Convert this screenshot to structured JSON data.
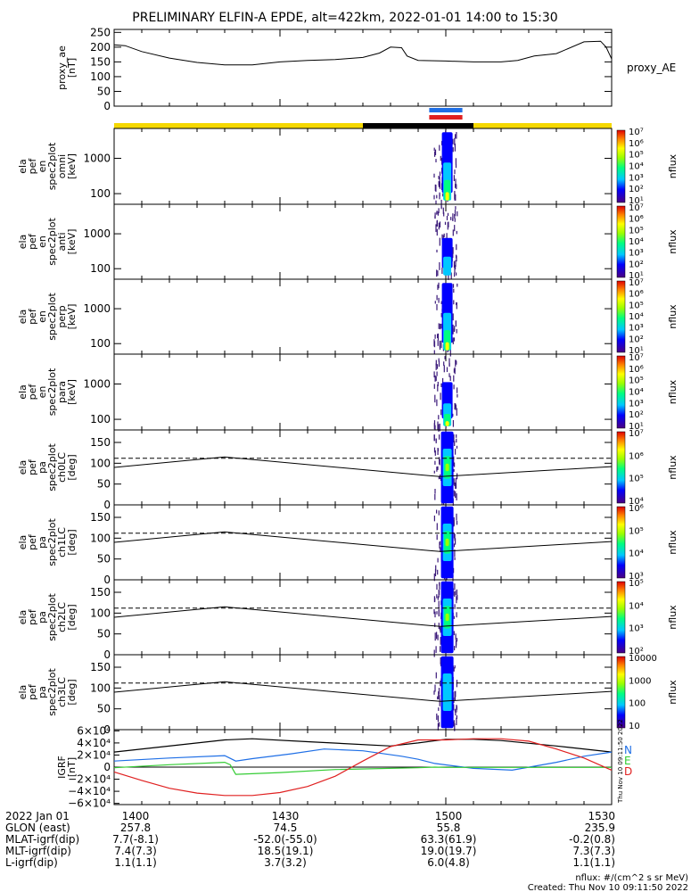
{
  "title": "PRELIMINARY ELFIN-A EPDE, alt=422km, 2022-01-01 14:00 to 15:30",
  "colors": {
    "yellow": "#f5d800",
    "black": "#000000",
    "blue": "#1f6fe6",
    "red": "#e02020",
    "green": "#33cc33"
  },
  "time_range_min": [
    0,
    90
  ],
  "chart_data": [
    {
      "type": "line",
      "id": "proxy_ae",
      "ylabel_lines": [
        "proxy_ae",
        "[nT]"
      ],
      "right_label": "proxy_AE",
      "ylim": [
        0,
        260
      ],
      "yticks": [
        0,
        50,
        100,
        150,
        200,
        250
      ],
      "series": [
        {
          "x": [
            0,
            2,
            5,
            10,
            15,
            20,
            25,
            30,
            35,
            40,
            45,
            48,
            50,
            52,
            53,
            55,
            60,
            65,
            70,
            73,
            76,
            80,
            85,
            88,
            89,
            90
          ],
          "y": [
            208,
            205,
            185,
            163,
            148,
            140,
            140,
            150,
            155,
            158,
            165,
            180,
            200,
            198,
            170,
            155,
            153,
            150,
            150,
            155,
            170,
            178,
            218,
            220,
            200,
            160
          ]
        }
      ]
    },
    {
      "type": "bar",
      "id": "status_bars",
      "segments": [
        {
          "color": "yellow",
          "x0": 0,
          "x1": 45
        },
        {
          "color": "black",
          "x0": 45,
          "x1": 65
        },
        {
          "color": "yellow",
          "x0": 65,
          "x1": 90
        }
      ],
      "markers": [
        {
          "color": "blue",
          "x0": 57,
          "x1": 63
        },
        {
          "color": "red",
          "x0": 57,
          "x1": 63
        }
      ]
    },
    {
      "type": "heatmap",
      "id": "en_omni",
      "ylabel_lines": [
        "ela",
        "pef",
        "en",
        "spec2plot",
        "omni",
        "[keV]"
      ],
      "yscale": "log",
      "ylim": [
        50,
        7000
      ],
      "yticks": [
        100,
        1000
      ],
      "colorbar": {
        "label": "nflux",
        "ticks": [
          "10¹",
          "10²",
          "10³",
          "10⁴",
          "10⁵",
          "10⁶",
          "10⁷"
        ]
      }
    },
    {
      "type": "heatmap",
      "id": "en_anti",
      "ylabel_lines": [
        "ela",
        "pef",
        "en",
        "spec2plot",
        "anti",
        "[keV]"
      ],
      "yscale": "log",
      "ylim": [
        50,
        7000
      ],
      "yticks": [
        100,
        1000
      ],
      "colorbar": {
        "label": "nflux",
        "ticks": [
          "10¹",
          "10²",
          "10³",
          "10⁴",
          "10⁵",
          "10⁶",
          "10⁷"
        ]
      }
    },
    {
      "type": "heatmap",
      "id": "en_perp",
      "ylabel_lines": [
        "ela",
        "pef",
        "en",
        "spec2plot",
        "perp",
        "[keV]"
      ],
      "yscale": "log",
      "ylim": [
        50,
        7000
      ],
      "yticks": [
        100,
        1000
      ],
      "colorbar": {
        "label": "nflux",
        "ticks": [
          "10¹",
          "10²",
          "10³",
          "10⁴",
          "10⁵",
          "10⁶",
          "10⁷"
        ]
      }
    },
    {
      "type": "heatmap",
      "id": "en_para",
      "ylabel_lines": [
        "ela",
        "pef",
        "en",
        "spec2plot",
        "para",
        "[keV]"
      ],
      "yscale": "log",
      "ylim": [
        50,
        7000
      ],
      "yticks": [
        100,
        1000
      ],
      "colorbar": {
        "label": "nflux",
        "ticks": [
          "10¹",
          "10²",
          "10³",
          "10⁴",
          "10⁵",
          "10⁶",
          "10⁷"
        ]
      }
    },
    {
      "type": "heatmap",
      "id": "pa_ch0",
      "ylabel_lines": [
        "ela",
        "pef",
        "pa",
        "spec2plot",
        "ch0LC",
        "[deg]"
      ],
      "ylim": [
        0,
        180
      ],
      "yticks": [
        0,
        50,
        100,
        150
      ],
      "colorbar": {
        "label": "nflux",
        "ticks": [
          "10⁴",
          "10⁵",
          "10⁶",
          "10⁷"
        ]
      }
    },
    {
      "type": "heatmap",
      "id": "pa_ch1",
      "ylabel_lines": [
        "ela",
        "pef",
        "pa",
        "spec2plot",
        "ch1LC",
        "[deg]"
      ],
      "ylim": [
        0,
        180
      ],
      "yticks": [
        0,
        50,
        100,
        150
      ],
      "colorbar": {
        "label": "nflux",
        "ticks": [
          "10³",
          "10⁴",
          "10⁵",
          "10⁶"
        ]
      }
    },
    {
      "type": "heatmap",
      "id": "pa_ch2",
      "ylabel_lines": [
        "ela",
        "pef",
        "pa",
        "spec2plot",
        "ch2LC",
        "[deg]"
      ],
      "ylim": [
        0,
        180
      ],
      "yticks": [
        0,
        50,
        100,
        150
      ],
      "colorbar": {
        "label": "nflux",
        "ticks": [
          "10²",
          "10³",
          "10⁴",
          "10⁵"
        ]
      }
    },
    {
      "type": "heatmap",
      "id": "pa_ch3",
      "ylabel_lines": [
        "ela",
        "pef",
        "pa",
        "spec2plot",
        "ch3LC",
        "[deg]"
      ],
      "ylim": [
        0,
        180
      ],
      "yticks": [
        0,
        50,
        100,
        150
      ],
      "colorbar": {
        "label": "nflux",
        "ticks": [
          "10",
          "100",
          "1000",
          "10000"
        ]
      }
    },
    {
      "type": "line",
      "id": "igrf",
      "ylabel_lines": [
        "IGRF",
        "[nT]"
      ],
      "ylim": [
        -62000,
        62000
      ],
      "ytick_labels": [
        "−6×10⁴",
        "−4×10⁴",
        "−2×10⁴",
        "0",
        "2×10⁴",
        "4×10⁴",
        "6×10⁴"
      ],
      "legend": [
        "N",
        "E",
        "D"
      ],
      "series": [
        {
          "color": "black",
          "x": [
            0,
            20,
            25,
            35,
            50,
            55,
            60,
            65,
            70,
            80,
            90
          ],
          "y": [
            25000,
            45000,
            47000,
            42000,
            35000,
            40000,
            46000,
            46000,
            44000,
            35000,
            25000
          ]
        },
        {
          "color": "blue",
          "x": [
            0,
            10,
            20,
            22,
            25,
            32,
            38,
            45,
            52,
            55,
            58,
            65,
            72,
            80,
            85,
            90
          ],
          "y": [
            10000,
            15000,
            19000,
            10000,
            14000,
            22000,
            30000,
            27000,
            18000,
            13000,
            6000,
            -2000,
            -5000,
            8000,
            18000,
            25000
          ]
        },
        {
          "color": "green",
          "x": [
            0,
            10,
            20,
            21,
            22,
            30,
            40,
            55,
            58,
            60,
            70,
            90
          ],
          "y": [
            -1000,
            4000,
            8000,
            4000,
            -12000,
            -9000,
            -4000,
            -1000,
            0,
            -500,
            -500,
            -500
          ]
        },
        {
          "color": "red",
          "x": [
            0,
            5,
            10,
            15,
            20,
            25,
            30,
            35,
            40,
            45,
            50,
            55,
            60,
            65,
            70,
            75,
            80,
            85,
            90
          ],
          "y": [
            -8000,
            -22000,
            -35000,
            -43000,
            -47000,
            -47000,
            -42000,
            -32000,
            -15000,
            10000,
            34000,
            45000,
            45000,
            47000,
            47000,
            43000,
            30000,
            15000,
            -5000
          ]
        }
      ]
    }
  ],
  "dashed_line_deg": 112,
  "pa_line": {
    "x": [
      0,
      20,
      57,
      59,
      90
    ],
    "y": [
      90,
      115,
      70,
      68,
      92
    ]
  },
  "orbit_table": {
    "rows": [
      [
        "2022 Jan 01",
        "1400",
        "1430",
        "1500",
        "1530"
      ],
      [
        "GLON (east)",
        "257.8",
        "74.5",
        "55.8",
        "235.9"
      ],
      [
        "MLAT-igrf(dip)",
        "7.7(-8.1)",
        "-52.0(-55.0)",
        "63.3(61.9)",
        "-0.2(0.8)"
      ],
      [
        "MLT-igrf(dip)",
        "7.4(7.3)",
        "18.5(19.1)",
        "19.0(19.7)",
        "7.3(7.3)"
      ],
      [
        "L-igrf(dip)",
        "1.1(1.1)",
        "3.7(3.2)",
        "6.0(4.8)",
        "1.1(1.1)"
      ]
    ]
  },
  "footer": {
    "units": "nflux: #/(cm^2 s sr MeV)",
    "created": "Created: Thu Nov 10 09:11:50 2022",
    "vertical_stamp": "Thu Nov 10 09:11:50 2022"
  }
}
